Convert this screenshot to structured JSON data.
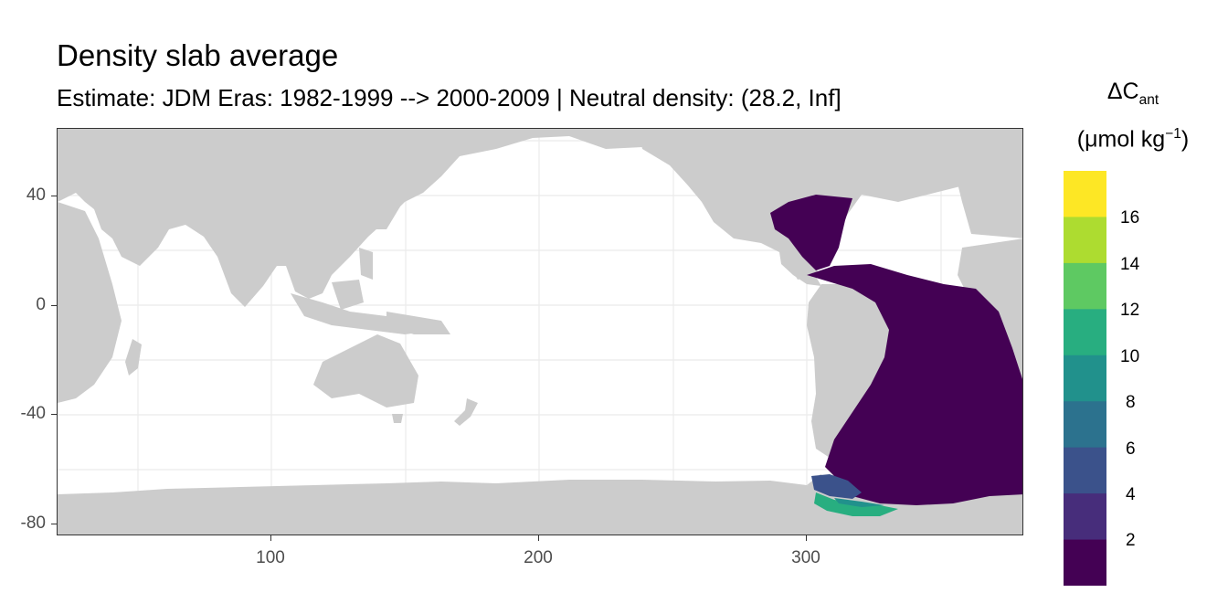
{
  "title": "Density slab average",
  "subtitle": "Estimate: JDM Eras: 1982-1999 --> 2000-2009 | Neutral density: (28.2, Inf]",
  "map": {
    "x_ticks": [
      "100",
      "200",
      "300"
    ],
    "y_ticks": [
      "40",
      "0",
      "-40",
      "-80"
    ],
    "land_color": "#cccccc",
    "grid_color": "#ebebeb"
  },
  "legend": {
    "title_symbol": "ΔC",
    "title_sub": "ant",
    "unit_open": "(μmol kg",
    "unit_sup": "−1",
    "unit_close": ")",
    "labels": [
      "16",
      "14",
      "12",
      "10",
      "8",
      "6",
      "4",
      "2"
    ],
    "colors": [
      "#fde725",
      "#addc30",
      "#5ec962",
      "#28ae80",
      "#21918c",
      "#2c728e",
      "#3b528b",
      "#472d7b",
      "#440154"
    ]
  }
}
